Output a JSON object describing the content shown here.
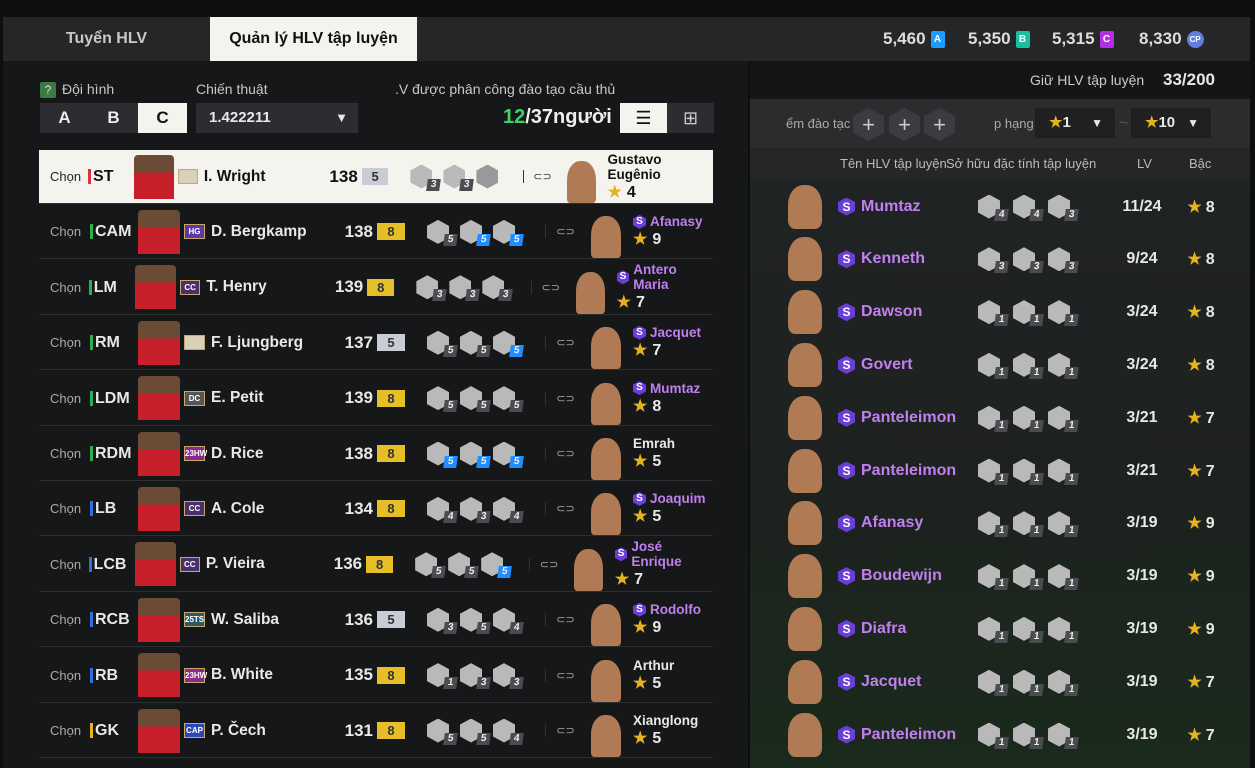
{
  "tabs": [
    "Tuyển HLV",
    "Quản lý HLV tập luyện"
  ],
  "currencies": [
    {
      "value": "5,460",
      "icon": "A",
      "color": "#1e9bff"
    },
    {
      "value": "5,350",
      "icon": "B",
      "color": "#17c0a0"
    },
    {
      "value": "5,315",
      "icon": "C",
      "color": "#b42ee8"
    },
    {
      "value": "8,330",
      "icon": "CP",
      "color": "#5f7fe0"
    }
  ],
  "left": {
    "formation_label": "Đội hình",
    "help_icon": "?",
    "formations": [
      "A",
      "B",
      "C"
    ],
    "active_formation": "C",
    "tactic_label": "Chiến thuật",
    "tactic_value": "1.422211",
    "assigned_label": ".V được phân công đào tạo cầu thủ",
    "assigned_count": "12",
    "assigned_total": "/37người",
    "choose_label": "Chọn",
    "rows": [
      {
        "pos": "ST",
        "pos_color": "#e03040",
        "season": "",
        "season_color": "#d8d0b8",
        "name": "I. Wright",
        "ovr": "138",
        "grade": "5",
        "grade_color": "#c9ccd4",
        "traits": [
          [
            "3",
            0
          ],
          [
            "3",
            0
          ],
          [
            "",
            0
          ]
        ],
        "coach": "Gustavo Eugênio",
        "special": false,
        "stars": "4",
        "selected": true
      },
      {
        "pos": "CAM",
        "pos_color": "#2fae4f",
        "season": "HG",
        "season_color": "#5a3aa0",
        "name": "D. Bergkamp",
        "ovr": "138",
        "grade": "8",
        "grade_color": "#e6bf28",
        "traits": [
          [
            "5",
            0
          ],
          [
            "5",
            1
          ],
          [
            "5",
            1
          ]
        ],
        "coach": "Afanasy",
        "special": true,
        "stars": "9"
      },
      {
        "pos": "LM",
        "pos_color": "#2fae4f",
        "season": "CC",
        "season_color": "#4a2f6a",
        "name": "T. Henry",
        "ovr": "139",
        "grade": "8",
        "grade_color": "#e6bf28",
        "traits": [
          [
            "3",
            0
          ],
          [
            "3",
            0
          ],
          [
            "3",
            0
          ]
        ],
        "coach": "Antero Maria",
        "special": true,
        "stars": "7"
      },
      {
        "pos": "RM",
        "pos_color": "#2fae4f",
        "season": "",
        "season_color": "#d8d0b8",
        "name": "F. Ljungberg",
        "ovr": "137",
        "grade": "5",
        "grade_color": "#c9ccd4",
        "traits": [
          [
            "5",
            0
          ],
          [
            "5",
            0
          ],
          [
            "5",
            1
          ]
        ],
        "coach": "Jacquet",
        "special": true,
        "stars": "7"
      },
      {
        "pos": "LDM",
        "pos_color": "#2fae4f",
        "season": "DC",
        "season_color": "#555",
        "name": "E. Petit",
        "ovr": "139",
        "grade": "8",
        "grade_color": "#e6bf28",
        "traits": [
          [
            "5",
            0
          ],
          [
            "5",
            0
          ],
          [
            "5",
            0
          ]
        ],
        "coach": "Mumtaz",
        "special": true,
        "stars": "8"
      },
      {
        "pos": "RDM",
        "pos_color": "#2fae4f",
        "season": "23HW",
        "season_color": "#8a2a8a",
        "name": "D. Rice",
        "ovr": "138",
        "grade": "8",
        "grade_color": "#e6bf28",
        "traits": [
          [
            "5",
            1
          ],
          [
            "5",
            1
          ],
          [
            "5",
            1
          ]
        ],
        "coach": "Emrah",
        "special": false,
        "stars": "5"
      },
      {
        "pos": "LB",
        "pos_color": "#2f6fe0",
        "season": "CC",
        "season_color": "#4a2f6a",
        "name": "A. Cole",
        "ovr": "134",
        "grade": "8",
        "grade_color": "#e6bf28",
        "traits": [
          [
            "4",
            0
          ],
          [
            "3",
            0
          ],
          [
            "4",
            0
          ]
        ],
        "coach": "Joaquim",
        "special": true,
        "stars": "5"
      },
      {
        "pos": "LCB",
        "pos_color": "#2f6fe0",
        "season": "CC",
        "season_color": "#4a2f6a",
        "name": "P. Vieira",
        "ovr": "136",
        "grade": "8",
        "grade_color": "#e6bf28",
        "traits": [
          [
            "5",
            0
          ],
          [
            "5",
            0
          ],
          [
            "5",
            1
          ]
        ],
        "coach": "José Enrique",
        "special": true,
        "stars": "7"
      },
      {
        "pos": "RCB",
        "pos_color": "#2f6fe0",
        "season": "25TS",
        "season_color": "#2a5a6a",
        "name": "W. Saliba",
        "ovr": "136",
        "grade": "5",
        "grade_color": "#c9ccd4",
        "traits": [
          [
            "3",
            0
          ],
          [
            "5",
            0
          ],
          [
            "4",
            0
          ]
        ],
        "coach": "Rodolfo",
        "special": true,
        "stars": "9"
      },
      {
        "pos": "RB",
        "pos_color": "#2f6fe0",
        "season": "23HW",
        "season_color": "#8a2a8a",
        "name": "B. White",
        "ovr": "135",
        "grade": "8",
        "grade_color": "#e6bf28",
        "traits": [
          [
            "1",
            0
          ],
          [
            "3",
            0
          ],
          [
            "3",
            0
          ]
        ],
        "coach": "Arthur",
        "special": false,
        "stars": "5"
      },
      {
        "pos": "GK",
        "pos_color": "#e6b31e",
        "season": "CAP",
        "season_color": "#2a4ab8",
        "name": "P. Čech",
        "ovr": "131",
        "grade": "8",
        "grade_color": "#e6bf28",
        "traits": [
          [
            "5",
            0
          ],
          [
            "5",
            0
          ],
          [
            "4",
            0
          ]
        ],
        "coach": "Xianglong",
        "special": false,
        "stars": "5"
      }
    ]
  },
  "right": {
    "keep_label": "Giữ HLV tập luyện",
    "keep_value": "33/200",
    "training_points_label": "ểm đào tạc",
    "rank_label": "p hạng",
    "rank_from": "1",
    "rank_to": "10",
    "range_sep": "~",
    "columns": [
      "Tên HLV tập luyện",
      "Sở hữu đặc tính tập luyện",
      "LV",
      "Bậc"
    ],
    "rows": [
      {
        "name": "Mumtaz",
        "traits": [
          "4",
          "4",
          "3"
        ],
        "lv": "11/24",
        "stars": "8"
      },
      {
        "name": "Kenneth",
        "traits": [
          "3",
          "3",
          "3"
        ],
        "lv": "9/24",
        "stars": "8"
      },
      {
        "name": "Dawson",
        "traits": [
          "1",
          "1",
          "1"
        ],
        "lv": "3/24",
        "stars": "8"
      },
      {
        "name": "Govert",
        "traits": [
          "1",
          "1",
          "1"
        ],
        "lv": "3/24",
        "stars": "8"
      },
      {
        "name": "Panteleimon",
        "traits": [
          "1",
          "1",
          "1"
        ],
        "lv": "3/21",
        "stars": "7"
      },
      {
        "name": "Panteleimon",
        "traits": [
          "1",
          "1",
          "1"
        ],
        "lv": "3/21",
        "stars": "7"
      },
      {
        "name": "Afanasy",
        "traits": [
          "1",
          "1",
          "1"
        ],
        "lv": "3/19",
        "stars": "9"
      },
      {
        "name": "Boudewijn",
        "traits": [
          "1",
          "1",
          "1"
        ],
        "lv": "3/19",
        "stars": "9"
      },
      {
        "name": "Diafra",
        "traits": [
          "1",
          "1",
          "1"
        ],
        "lv": "3/19",
        "stars": "9"
      },
      {
        "name": "Jacquet",
        "traits": [
          "1",
          "1",
          "1"
        ],
        "lv": "3/19",
        "stars": "7"
      },
      {
        "name": "Panteleimon",
        "traits": [
          "1",
          "1",
          "1"
        ],
        "lv": "3/19",
        "stars": "7"
      }
    ]
  }
}
